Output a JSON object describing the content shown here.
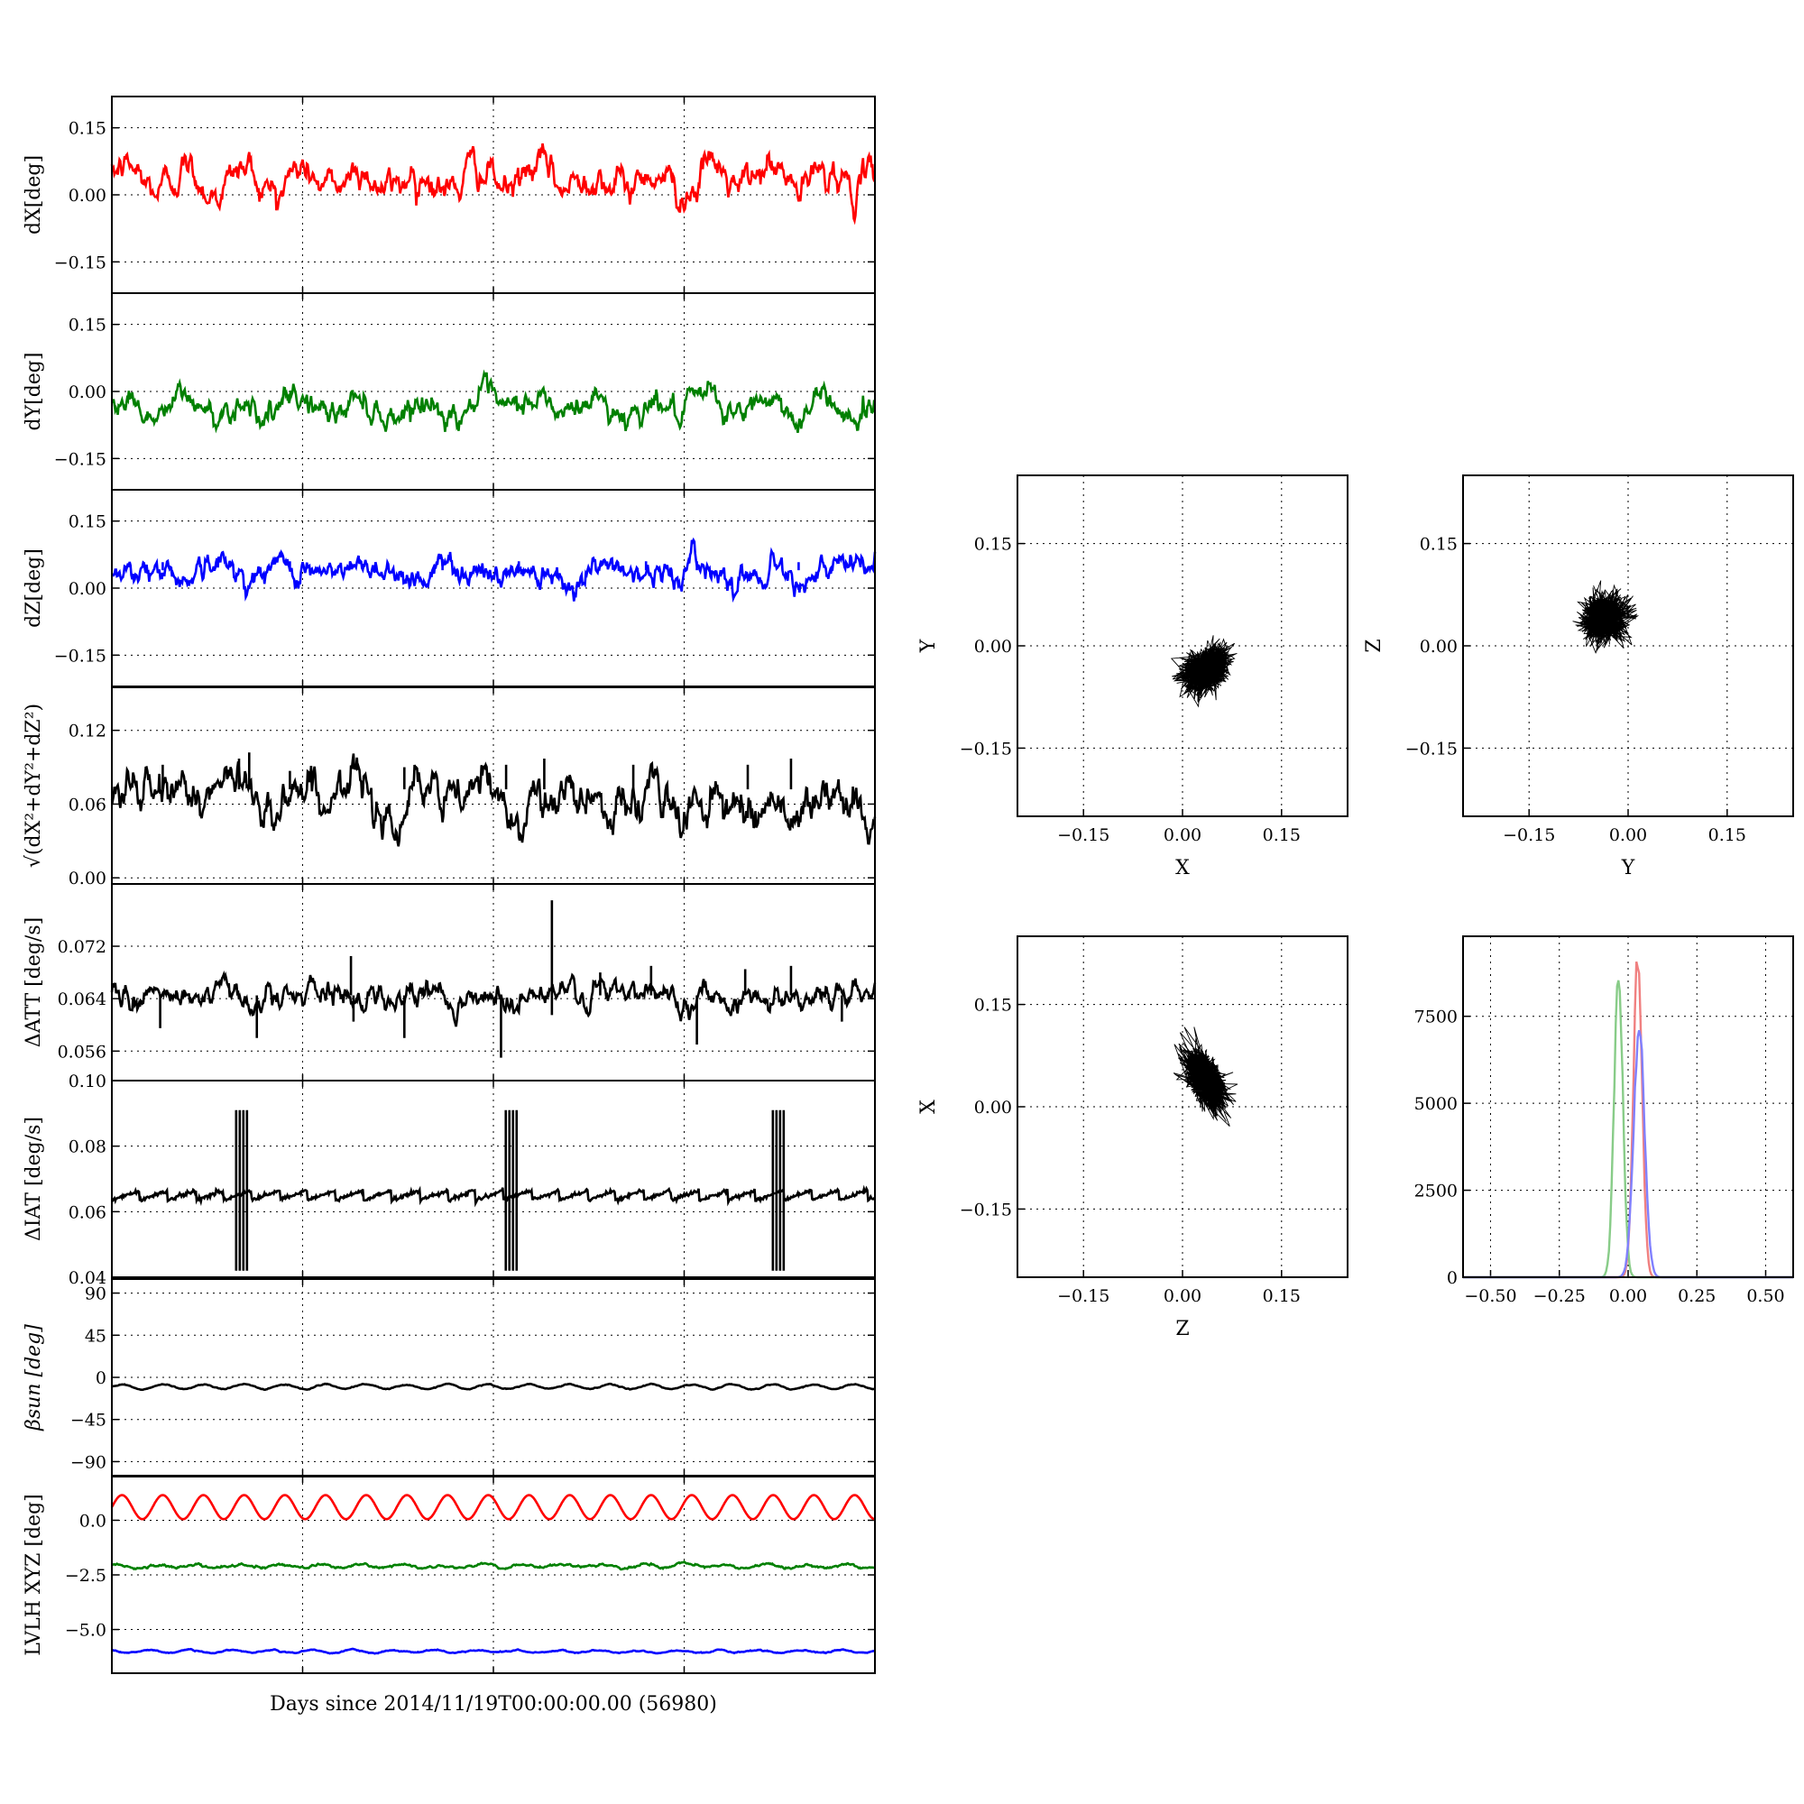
{
  "chart_data": [
    {
      "type": "line",
      "id": "dx",
      "ylabel": "dX[deg]",
      "ylim": [
        -0.22,
        0.22
      ],
      "yticks": [
        "0.15",
        "0.00",
        "−0.15"
      ],
      "ytick_values": [
        0.15,
        0,
        -0.15
      ],
      "xlim": [
        0,
        30
      ],
      "series": [
        {
          "color": "#ff0000",
          "base": 0.035,
          "amp": 0.025,
          "period": 2.3,
          "noise": 0.012,
          "spikes": []
        }
      ]
    },
    {
      "type": "line",
      "id": "dy",
      "ylabel": "dY[deg]",
      "ylim": [
        -0.22,
        0.22
      ],
      "yticks": [
        "0.15",
        "0.00",
        "−0.15"
      ],
      "ytick_values": [
        0.15,
        0,
        -0.15
      ],
      "xlim": [
        0,
        30
      ],
      "series": [
        {
          "color": "#008000",
          "base": -0.035,
          "amp": 0.02,
          "period": 2.3,
          "noise": 0.01,
          "spikes": []
        }
      ]
    },
    {
      "type": "line",
      "id": "dz",
      "ylabel": "dZ[deg]",
      "ylim": [
        -0.22,
        0.22
      ],
      "yticks": [
        "0.15",
        "0.00",
        "−0.15"
      ],
      "ytick_values": [
        0.15,
        0,
        -0.15
      ],
      "xlim": [
        0,
        30
      ],
      "series": [
        {
          "color": "#0000ff",
          "base": 0.04,
          "amp": 0.012,
          "period": 3.2,
          "noise": 0.01,
          "spikes": [
            [
              2,
              0.018
            ],
            [
              7,
              0.02
            ],
            [
              13,
              0.025
            ],
            [
              16,
              0.02
            ],
            [
              21,
              0.02
            ],
            [
              23,
              0.02
            ],
            [
              27,
              0.018
            ]
          ]
        }
      ]
    },
    {
      "type": "line",
      "id": "mag",
      "ylabel": "√(dX²+dY²+dZ²)",
      "ylim": [
        -0.005,
        0.155
      ],
      "yticks": [
        "0.12",
        "0.06",
        "0.00"
      ],
      "ytick_values": [
        0.12,
        0.06,
        0
      ],
      "xlim": [
        0,
        30
      ],
      "series": [
        {
          "color": "#000000",
          "base": 0.072,
          "amp": 0.008,
          "period": 2.3,
          "noise": 0.006,
          "trend": -0.0005,
          "spikes": [
            [
              2,
              0.02
            ],
            [
              5,
              0.025
            ],
            [
              5.4,
              0.03
            ],
            [
              7,
              0.015
            ],
            [
              11.5,
              0.018
            ],
            [
              15.5,
              0.02
            ],
            [
              17,
              0.025
            ],
            [
              20.5,
              0.02
            ],
            [
              25,
              0.02
            ],
            [
              26.7,
              0.025
            ]
          ]
        }
      ]
    },
    {
      "type": "line",
      "id": "datt",
      "ylabel": "ΔATT [deg/s]",
      "ylim": [
        0.0515,
        0.0815
      ],
      "yticks": [
        "0.072",
        "0.064",
        "0.056"
      ],
      "ytick_values": [
        0.072,
        0.064,
        0.056
      ],
      "xlim": [
        0,
        30
      ],
      "series": [
        {
          "color": "#000000",
          "base": 0.0645,
          "amp": 0.0005,
          "period": 0.4,
          "noise": 0.0006,
          "spikes": [
            [
              1.9,
              -0.005
            ],
            [
              5.7,
              -0.0065
            ],
            [
              9.5,
              -0.004
            ],
            [
              9.4,
              0.006
            ],
            [
              11.5,
              -0.0065
            ],
            [
              15.3,
              -0.0095
            ],
            [
              17.3,
              0.0145
            ],
            [
              17.3,
              -0.003
            ],
            [
              19.2,
              0.0035
            ],
            [
              21.2,
              0.0045
            ],
            [
              23,
              -0.0075
            ],
            [
              24.9,
              0.004
            ],
            [
              26.7,
              0.0045
            ],
            [
              28.7,
              -0.004
            ]
          ]
        }
      ]
    },
    {
      "type": "line",
      "id": "diat",
      "ylabel": "ΔIAT [deg/s]",
      "ylim": [
        0.04,
        0.1
      ],
      "yticks": [
        "0.10",
        "0.08",
        "0.06",
        "0.04"
      ],
      "ytick_values": [
        0.1,
        0.08,
        0.06,
        0.04
      ],
      "xlim": [
        0,
        30
      ],
      "series": [
        {
          "color": "#000000",
          "sawtooth": true,
          "base": 0.0635,
          "amp": 0.003,
          "period": 1.1,
          "noise": 0.0003,
          "bursts": [
            5.1,
            15.7,
            26.2
          ],
          "burst_range": [
            0.042,
            0.091
          ]
        }
      ]
    },
    {
      "type": "line",
      "id": "beta",
      "ylabel": "βsun [deg]",
      "ylim": [
        -105,
        105
      ],
      "yticks": [
        "90",
        "45",
        "0",
        "−45",
        "−90"
      ],
      "ytick_values": [
        90,
        45,
        0,
        -45,
        -90
      ],
      "xlim": [
        0,
        30
      ],
      "series": [
        {
          "color": "#000000",
          "base": -10,
          "amp": 2.5,
          "period": 1.6,
          "noise": 0.2,
          "spikes": []
        }
      ]
    },
    {
      "type": "line",
      "id": "lvlh",
      "ylabel": "LVLH XYZ [deg]",
      "ylim": [
        -7.0,
        2.0
      ],
      "yticks": [
        "0.0",
        "−2.5",
        "−5.0"
      ],
      "ytick_values": [
        0,
        -2.5,
        -5
      ],
      "xlim": [
        0,
        30
      ],
      "xlabel": "Days since 2014/11/19T00:00:00.00 (56980)",
      "series": [
        {
          "color": "#ff0000",
          "base": 0.6,
          "amp": 0.55,
          "period": 1.6,
          "noise": 0.0,
          "spikes": []
        },
        {
          "color": "#008000",
          "base": -2.1,
          "amp": 0.07,
          "period": 1.6,
          "noise": 0.02,
          "spikes": []
        },
        {
          "color": "#0000ff",
          "base": -6.0,
          "amp": 0.06,
          "period": 1.6,
          "noise": 0.01,
          "spikes": []
        }
      ]
    },
    {
      "type": "scatter",
      "id": "xy",
      "xlabel": "X",
      "ylabel": "Y",
      "xlim": [
        -0.25,
        0.25
      ],
      "ylim": [
        -0.25,
        0.25
      ],
      "xticks": [
        "−0.15",
        "0.00",
        "0.15"
      ],
      "xtick_values": [
        -0.15,
        0,
        0.15
      ],
      "yticks": [
        "0.15",
        "0.00",
        "−0.15"
      ],
      "ytick_values": [
        0.15,
        0,
        -0.15
      ],
      "cluster": {
        "cx": 0.035,
        "cy": -0.035,
        "sx": 0.016,
        "sy": 0.015,
        "rho": 0.3,
        "n": 1400
      }
    },
    {
      "type": "scatter",
      "id": "yz",
      "xlabel": "Y",
      "ylabel": "Z",
      "xlim": [
        -0.25,
        0.25
      ],
      "ylim": [
        -0.25,
        0.25
      ],
      "xticks": [
        "−0.15",
        "0.00",
        "0.15"
      ],
      "xtick_values": [
        -0.15,
        0,
        0.15
      ],
      "yticks": [
        "0.15",
        "0.00",
        "−0.15"
      ],
      "ytick_values": [
        0.15,
        0,
        -0.15
      ],
      "cluster": {
        "cx": -0.035,
        "cy": 0.04,
        "sx": 0.015,
        "sy": 0.015,
        "rho": 0.1,
        "n": 1400
      }
    },
    {
      "type": "scatter",
      "id": "zx",
      "xlabel": "Z",
      "ylabel": "X",
      "xlim": [
        -0.25,
        0.25
      ],
      "ylim": [
        -0.25,
        0.25
      ],
      "xticks": [
        "−0.15",
        "0.00",
        "0.15"
      ],
      "xtick_values": [
        -0.15,
        0,
        0.15
      ],
      "yticks": [
        "0.15",
        "0.00",
        "−0.15"
      ],
      "ytick_values": [
        0.15,
        0,
        -0.15
      ],
      "cluster": {
        "cx": 0.035,
        "cy": 0.04,
        "sx": 0.015,
        "sy": 0.02,
        "rho": -0.55,
        "n": 1400
      }
    },
    {
      "type": "histogram",
      "id": "hist",
      "xlim": [
        -0.6,
        0.6
      ],
      "ylim": [
        0,
        9800
      ],
      "xticks": [
        "−0.50",
        "−0.25",
        "0.00",
        "0.25",
        "0.50"
      ],
      "xtick_values": [
        -0.5,
        -0.25,
        0,
        0.25,
        0.5
      ],
      "yticks": [
        "7500",
        "5000",
        "2500",
        "0"
      ],
      "ytick_values": [
        7500,
        5000,
        2500,
        0
      ],
      "series": [
        {
          "color": "#f08080",
          "center": 0.035,
          "sigma": 0.016,
          "peak": 9800
        },
        {
          "color": "#88cc88",
          "center": -0.035,
          "sigma": 0.016,
          "peak": 9000
        },
        {
          "color": "#8080ff",
          "center": 0.04,
          "sigma": 0.02,
          "peak": 7500
        }
      ]
    }
  ],
  "colors": {
    "red": "#ff0000",
    "green": "#008000",
    "blue": "#0000ff",
    "black": "#000000"
  }
}
